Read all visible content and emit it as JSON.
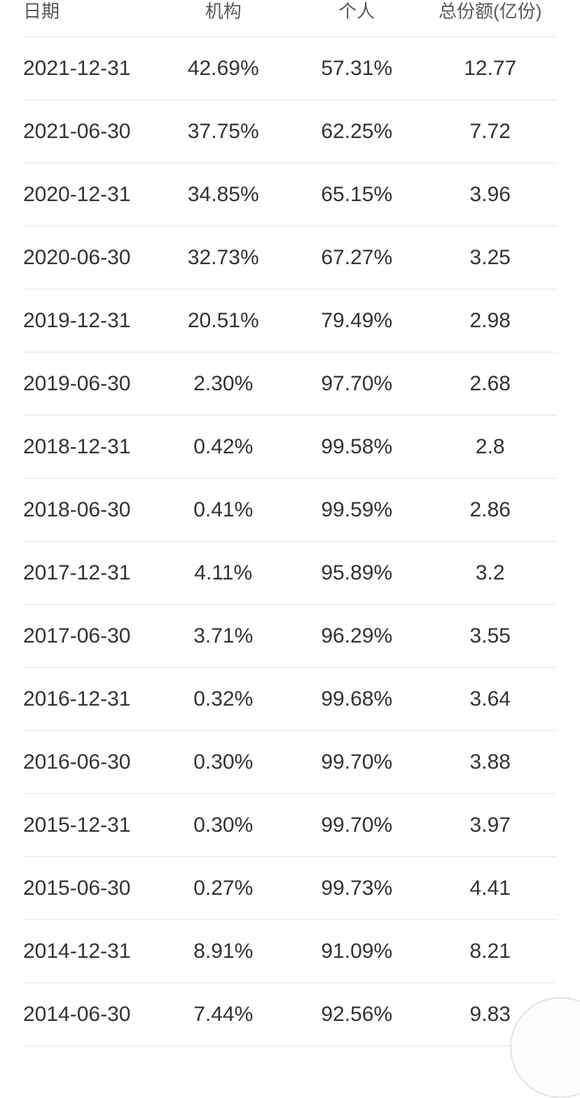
{
  "table": {
    "columns": [
      {
        "key": "date",
        "label": "日期"
      },
      {
        "key": "institution",
        "label": "机构"
      },
      {
        "key": "individual",
        "label": "个人"
      },
      {
        "key": "total_shares",
        "label": "总份额(亿份)"
      }
    ],
    "rows": [
      {
        "date": "2021-12-31",
        "institution": "42.69%",
        "individual": "57.31%",
        "total_shares": "12.77"
      },
      {
        "date": "2021-06-30",
        "institution": "37.75%",
        "individual": "62.25%",
        "total_shares": "7.72"
      },
      {
        "date": "2020-12-31",
        "institution": "34.85%",
        "individual": "65.15%",
        "total_shares": "3.96"
      },
      {
        "date": "2020-06-30",
        "institution": "32.73%",
        "individual": "67.27%",
        "total_shares": "3.25"
      },
      {
        "date": "2019-12-31",
        "institution": "20.51%",
        "individual": "79.49%",
        "total_shares": "2.98"
      },
      {
        "date": "2019-06-30",
        "institution": "2.30%",
        "individual": "97.70%",
        "total_shares": "2.68"
      },
      {
        "date": "2018-12-31",
        "institution": "0.42%",
        "individual": "99.58%",
        "total_shares": "2.8"
      },
      {
        "date": "2018-06-30",
        "institution": "0.41%",
        "individual": "99.59%",
        "total_shares": "2.86"
      },
      {
        "date": "2017-12-31",
        "institution": "4.11%",
        "individual": "95.89%",
        "total_shares": "3.2"
      },
      {
        "date": "2017-06-30",
        "institution": "3.71%",
        "individual": "96.29%",
        "total_shares": "3.55"
      },
      {
        "date": "2016-12-31",
        "institution": "0.32%",
        "individual": "99.68%",
        "total_shares": "3.64"
      },
      {
        "date": "2016-06-30",
        "institution": "0.30%",
        "individual": "99.70%",
        "total_shares": "3.88"
      },
      {
        "date": "2015-12-31",
        "institution": "0.30%",
        "individual": "99.70%",
        "total_shares": "3.97"
      },
      {
        "date": "2015-06-30",
        "institution": "0.27%",
        "individual": "99.73%",
        "total_shares": "4.41"
      },
      {
        "date": "2014-12-31",
        "institution": "8.91%",
        "individual": "91.09%",
        "total_shares": "8.21"
      },
      {
        "date": "2014-06-30",
        "institution": "7.44%",
        "individual": "92.56%",
        "total_shares": "9.83"
      }
    ]
  },
  "colors": {
    "background": "#ffffff",
    "header_text": "#595959",
    "body_text": "#333333",
    "divider": "#e7e7e7",
    "fab_border": "#e4e4e4"
  }
}
